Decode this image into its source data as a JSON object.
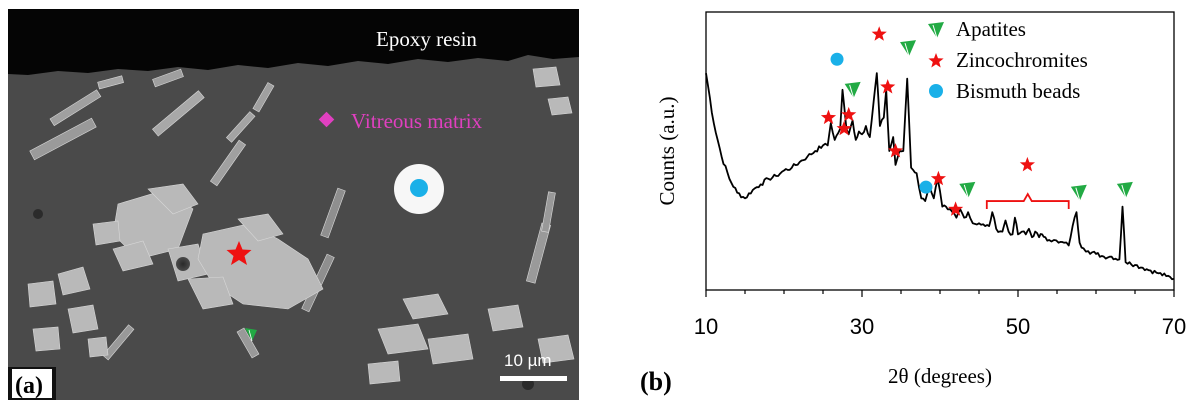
{
  "panel_a": {
    "label": "(a)",
    "epoxy_label": "Epoxy resin",
    "matrix_label": "Vitreous matrix",
    "scale_bar": "10 µm",
    "colors": {
      "matrix": "#e040c0",
      "star": "#ee1111",
      "bead": "#1ab0e8",
      "apatite": "#22aa44"
    }
  },
  "panel_b": {
    "label": "(b)",
    "legend": [
      "Apatites",
      "Zincochromites",
      "Bismuth beads"
    ]
  },
  "chart_data": {
    "type": "line",
    "xlabel": "2θ (degrees)",
    "ylabel": "Counts (a.u.)",
    "xlim": [
      10,
      70
    ],
    "xticks": [
      10,
      30,
      50,
      70
    ],
    "xtick_labels": [
      "10",
      "30",
      "50",
      "70"
    ],
    "ylim": [
      0,
      100
    ],
    "y_ticks_shown": false,
    "legend_position": "top-right",
    "series": [
      {
        "x": [
          10,
          11,
          12,
          13,
          14,
          15,
          16,
          17,
          18,
          19,
          20,
          21,
          22,
          23,
          24,
          25,
          25.6,
          26,
          26.5,
          27.2,
          27.5,
          28,
          28.3,
          28.8,
          29.2,
          29.6,
          30,
          30.5,
          31,
          31.5,
          31.9,
          32.3,
          32.8,
          33.1,
          33.5,
          34,
          34.3,
          34.8,
          35.3,
          35.8,
          36.3,
          37,
          37.6,
          38.1,
          38.6,
          39.2,
          39.7,
          40.3,
          41,
          41.6,
          42.1,
          42.6,
          43.1,
          43.6,
          44.2,
          45,
          45.8,
          46.3,
          46.7,
          47.2,
          48,
          48.4,
          48.8,
          49.3,
          49.6,
          50,
          50.5,
          51,
          51.4,
          51.8,
          52.2,
          52.7,
          53.1,
          53.5,
          54,
          54.6,
          55.2,
          55.9,
          56.5,
          57,
          57.5,
          57.9,
          58.4,
          59,
          60,
          61,
          62,
          63,
          63.4,
          63.8,
          64.3,
          65,
          66,
          67,
          68,
          69,
          70
        ],
        "y": [
          78,
          60,
          48,
          40,
          35,
          33,
          36,
          38,
          40,
          41,
          43,
          44,
          46,
          48,
          50,
          52,
          52,
          60,
          54,
          58,
          72,
          58,
          56,
          61,
          54,
          57,
          56,
          59,
          55,
          68,
          78,
          59,
          62,
          72,
          50,
          55,
          45,
          50,
          50,
          76,
          44,
          42,
          33,
          32,
          38,
          33,
          40,
          30,
          29,
          28,
          26,
          29,
          26,
          28,
          24,
          24,
          23,
          23,
          28,
          22,
          21,
          25,
          21,
          20,
          26,
          20,
          21,
          20,
          22,
          19,
          21,
          19,
          20,
          19,
          18,
          18,
          17,
          17,
          16,
          23,
          28,
          17,
          15,
          14,
          13,
          12,
          12,
          11,
          30,
          10,
          10,
          9,
          8,
          7,
          6,
          5,
          4
        ]
      }
    ],
    "annotations": [
      {
        "marker": "apatite",
        "x": 28.8,
        "y": 72
      },
      {
        "marker": "apatite",
        "x": 35.9,
        "y": 87
      },
      {
        "marker": "apatite",
        "x": 43.5,
        "y": 36
      },
      {
        "marker": "apatite",
        "x": 57.8,
        "y": 35
      },
      {
        "marker": "apatite",
        "x": 63.7,
        "y": 36
      },
      {
        "marker": "zincochromite",
        "x": 25.7,
        "y": 62
      },
      {
        "marker": "zincochromite",
        "x": 27.7,
        "y": 58
      },
      {
        "marker": "zincochromite",
        "x": 28.3,
        "y": 63
      },
      {
        "marker": "zincochromite",
        "x": 32.2,
        "y": 92
      },
      {
        "marker": "zincochromite",
        "x": 33.3,
        "y": 73
      },
      {
        "marker": "zincochromite",
        "x": 34.3,
        "y": 50
      },
      {
        "marker": "zincochromite",
        "x": 39.8,
        "y": 40
      },
      {
        "marker": "zincochromite",
        "x": 42.0,
        "y": 29
      },
      {
        "marker": "zincochromite",
        "x": 51.2,
        "y": 45
      },
      {
        "marker": "bismuth",
        "x": 26.8,
        "y": 83
      },
      {
        "marker": "bismuth",
        "x": 38.2,
        "y": 37
      }
    ],
    "bracket": {
      "x_start": 46,
      "x_end": 56.5,
      "y": 32
    }
  }
}
